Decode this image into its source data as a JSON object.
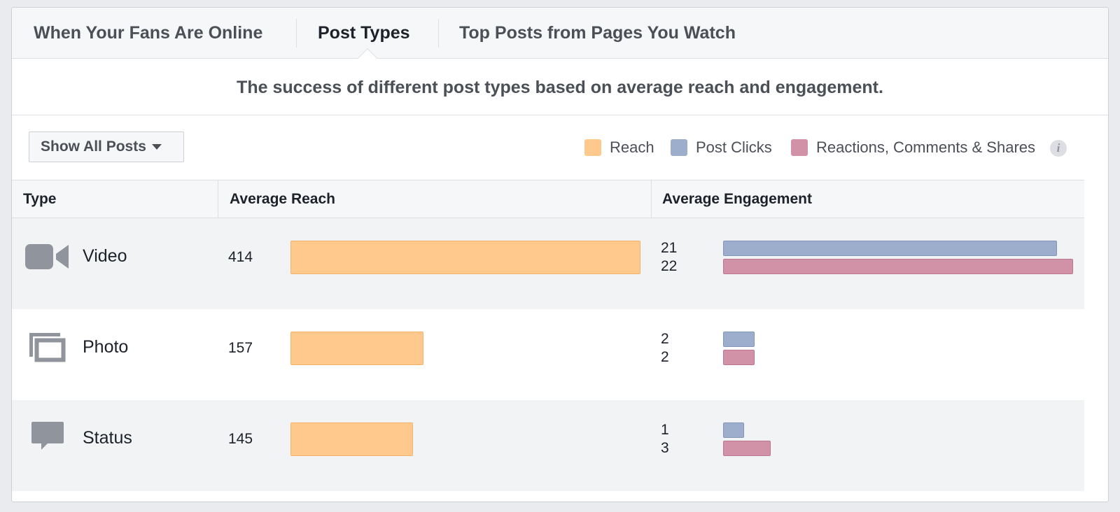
{
  "tabs": [
    {
      "label": "When Your Fans Are Online",
      "active": false
    },
    {
      "label": "Post Types",
      "active": true
    },
    {
      "label": "Top Posts from Pages You Watch",
      "active": false
    }
  ],
  "subtitle": "The success of different post types based on average reach and engagement.",
  "filter": {
    "label": "Show All Posts"
  },
  "legend": {
    "reach": {
      "label": "Reach",
      "color": "#ffc98d"
    },
    "clicks": {
      "label": "Post Clicks",
      "color": "#9daecd"
    },
    "reactions": {
      "label": "Reactions, Comments & Shares",
      "color": "#d192a8"
    },
    "info_icon": "i"
  },
  "table": {
    "headers": {
      "type": "Type",
      "reach": "Average Reach",
      "engagement": "Average Engagement"
    },
    "rows": [
      {
        "type": "Video",
        "icon": "video-camera-icon",
        "reach": "414",
        "clicks": "21",
        "reactions": "22"
      },
      {
        "type": "Photo",
        "icon": "photo-stack-icon",
        "reach": "157",
        "clicks": "2",
        "reactions": "2"
      },
      {
        "type": "Status",
        "icon": "speech-bubble-icon",
        "reach": "145",
        "clicks": "1",
        "reactions": "3"
      }
    ]
  },
  "chart_data": {
    "type": "bar",
    "categories": [
      "Video",
      "Photo",
      "Status"
    ],
    "series": [
      {
        "name": "Reach",
        "values": [
          414,
          157,
          145
        ]
      },
      {
        "name": "Post Clicks",
        "values": [
          21,
          2,
          1
        ]
      },
      {
        "name": "Reactions, Comments & Shares",
        "values": [
          22,
          2,
          3
        ]
      }
    ]
  }
}
